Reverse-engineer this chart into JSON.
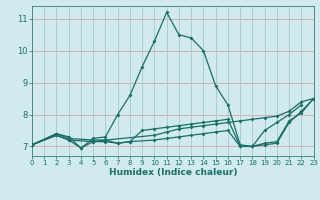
{
  "xlabel": "Humidex (Indice chaleur)",
  "bg_color": "#d0eaed",
  "line_color": "#1a6e68",
  "xlim": [
    0,
    23
  ],
  "ylim": [
    6.7,
    11.4
  ],
  "yticks": [
    7,
    8,
    9,
    10,
    11
  ],
  "xticks": [
    0,
    1,
    2,
    3,
    4,
    5,
    6,
    7,
    8,
    9,
    10,
    11,
    12,
    13,
    14,
    15,
    16,
    17,
    18,
    19,
    20,
    21,
    22,
    23
  ],
  "series": [
    {
      "x": [
        0,
        2,
        3,
        4,
        5,
        6,
        7,
        8,
        9,
        10,
        11,
        12,
        13,
        14,
        15,
        16,
        17,
        18,
        19,
        20,
        21,
        22
      ],
      "y": [
        7.05,
        7.4,
        7.3,
        6.95,
        7.25,
        7.3,
        8.0,
        8.6,
        9.5,
        10.3,
        11.2,
        10.5,
        10.4,
        10.0,
        8.9,
        8.3,
        7.05,
        7.0,
        7.5,
        7.75,
        8.0,
        8.3
      ]
    },
    {
      "x": [
        0,
        2,
        3,
        5,
        6,
        10,
        11,
        12,
        13,
        14,
        15,
        16,
        17,
        18,
        19,
        20,
        21,
        22,
        23
      ],
      "y": [
        7.05,
        7.4,
        7.25,
        7.2,
        7.2,
        7.35,
        7.45,
        7.55,
        7.6,
        7.65,
        7.7,
        7.75,
        7.8,
        7.85,
        7.9,
        7.95,
        8.1,
        8.4,
        8.5
      ]
    },
    {
      "x": [
        0,
        2,
        3,
        5,
        6,
        7,
        8,
        10,
        11,
        12,
        13,
        14,
        15,
        16,
        17,
        18,
        19,
        20,
        21,
        22,
        23
      ],
      "y": [
        7.05,
        7.35,
        7.2,
        7.15,
        7.15,
        7.1,
        7.15,
        7.2,
        7.25,
        7.3,
        7.35,
        7.4,
        7.45,
        7.5,
        7.0,
        7.0,
        7.05,
        7.1,
        7.75,
        8.1,
        8.5
      ]
    },
    {
      "x": [
        0,
        2,
        3,
        4,
        5,
        6,
        7,
        8,
        9,
        10,
        11,
        12,
        13,
        14,
        15,
        16,
        17,
        18,
        19,
        20,
        21,
        22,
        23
      ],
      "y": [
        7.05,
        7.35,
        7.2,
        6.95,
        7.15,
        7.2,
        7.1,
        7.15,
        7.5,
        7.55,
        7.6,
        7.65,
        7.7,
        7.75,
        7.8,
        7.85,
        7.0,
        7.0,
        7.1,
        7.15,
        7.8,
        8.05,
        8.5
      ]
    }
  ]
}
